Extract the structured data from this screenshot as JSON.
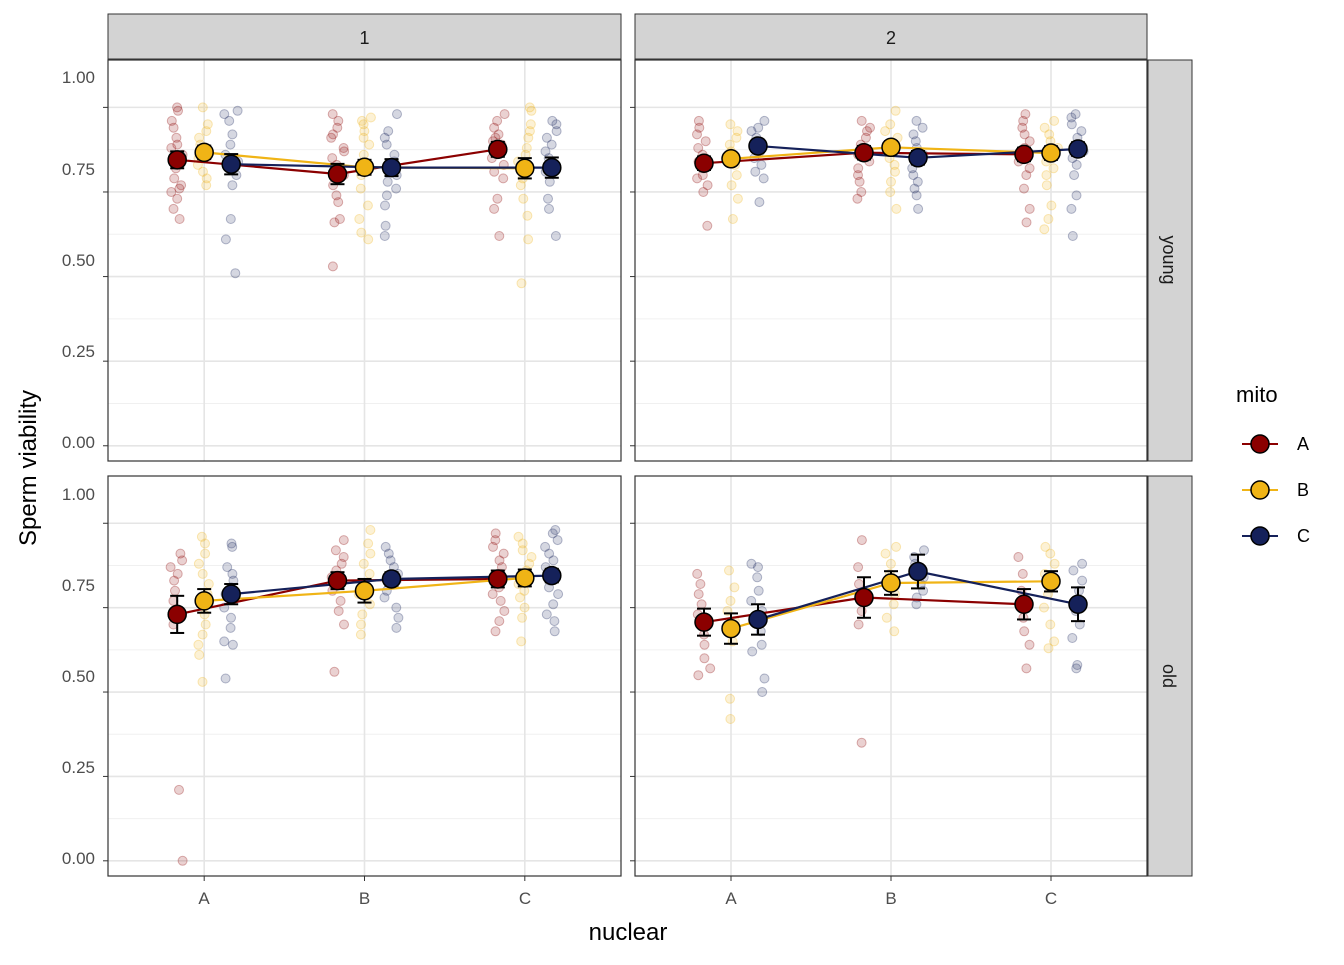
{
  "chart_data": {
    "type": "line",
    "y_label": "Sperm viability",
    "x_label": "nuclear",
    "x_categories": [
      "A",
      "B",
      "C"
    ],
    "y_ticks": [
      "0.00",
      "0.25",
      "0.50",
      "0.75",
      "1.00"
    ],
    "ylim": [
      -0.045,
      1.14
    ],
    "col_facets": [
      "1",
      "2"
    ],
    "row_facets": [
      "young",
      "old"
    ],
    "legend": {
      "title": "mito",
      "entries": [
        {
          "label": "A",
          "color": "#8B0000"
        },
        {
          "label": "B",
          "color": "#F0B416"
        },
        {
          "label": "C",
          "color": "#15215A"
        }
      ]
    },
    "panels": [
      {
        "col": "1",
        "row": "young",
        "means": {
          "A": [
            {
              "m": 0.845,
              "se": 0.025
            },
            {
              "m": 0.803,
              "se": 0.03
            },
            {
              "m": 0.876,
              "se": 0.022
            }
          ],
          "B": [
            {
              "m": 0.867,
              "se": 0.02
            },
            {
              "m": 0.823,
              "se": 0.022
            },
            {
              "m": 0.82,
              "se": 0.03
            }
          ],
          "C": [
            {
              "m": 0.832,
              "se": 0.03
            },
            {
              "m": 0.822,
              "se": 0.025
            },
            {
              "m": 0.822,
              "se": 0.03
            }
          ]
        },
        "raw": {
          "A": [
            [
              1.0,
              0.99,
              0.96,
              0.94,
              0.91,
              0.89,
              0.88,
              0.86,
              0.84,
              0.82,
              0.79,
              0.77,
              0.76,
              0.75,
              0.73,
              0.7,
              0.67
            ],
            [
              0.98,
              0.96,
              0.94,
              0.92,
              0.91,
              0.88,
              0.87,
              0.85,
              0.83,
              0.8,
              0.77,
              0.74,
              0.72,
              0.67,
              0.66,
              0.53
            ],
            [
              0.98,
              0.96,
              0.94,
              0.92,
              0.91,
              0.9,
              0.89,
              0.88,
              0.87,
              0.85,
              0.83,
              0.81,
              0.79,
              0.73,
              0.7,
              0.62
            ]
          ],
          "B": [
            [
              1.0,
              0.95,
              0.93,
              0.91,
              0.89,
              0.87,
              0.85,
              0.83,
              0.81,
              0.79,
              0.77
            ],
            [
              0.97,
              0.96,
              0.95,
              0.93,
              0.91,
              0.89,
              0.86,
              0.83,
              0.8,
              0.76,
              0.71,
              0.67,
              0.63,
              0.61
            ],
            [
              1.0,
              0.99,
              0.95,
              0.93,
              0.91,
              0.88,
              0.86,
              0.84,
              0.81,
              0.79,
              0.77,
              0.73,
              0.68,
              0.61,
              0.48
            ]
          ],
          "C": [
            [
              0.99,
              0.98,
              0.96,
              0.92,
              0.89,
              0.86,
              0.84,
              0.82,
              0.8,
              0.77,
              0.67,
              0.61,
              0.51
            ],
            [
              0.98,
              0.93,
              0.91,
              0.89,
              0.86,
              0.84,
              0.82,
              0.8,
              0.78,
              0.76,
              0.74,
              0.71,
              0.65,
              0.62
            ],
            [
              0.96,
              0.95,
              0.93,
              0.91,
              0.89,
              0.87,
              0.85,
              0.83,
              0.81,
              0.78,
              0.73,
              0.7,
              0.62
            ]
          ]
        }
      },
      {
        "col": "2",
        "row": "young",
        "means": {
          "A": [
            {
              "m": 0.835,
              "se": 0.02
            },
            {
              "m": 0.866,
              "se": 0.02
            },
            {
              "m": 0.861,
              "se": 0.02
            }
          ],
          "B": [
            {
              "m": 0.848,
              "se": 0.015
            },
            {
              "m": 0.882,
              "se": 0.018
            },
            {
              "m": 0.865,
              "se": 0.02
            }
          ],
          "C": [
            {
              "m": 0.886,
              "se": 0.018
            },
            {
              "m": 0.851,
              "se": 0.02
            },
            {
              "m": 0.877,
              "se": 0.02
            }
          ]
        },
        "raw": {
          "A": [
            [
              0.96,
              0.94,
              0.92,
              0.9,
              0.88,
              0.86,
              0.84,
              0.82,
              0.8,
              0.79,
              0.77,
              0.75,
              0.65
            ],
            [
              0.96,
              0.94,
              0.93,
              0.91,
              0.89,
              0.88,
              0.86,
              0.84,
              0.82,
              0.8,
              0.78,
              0.75,
              0.73
            ],
            [
              0.98,
              0.96,
              0.94,
              0.92,
              0.9,
              0.88,
              0.86,
              0.84,
              0.82,
              0.8,
              0.76,
              0.7,
              0.66
            ]
          ],
          "B": [
            [
              0.95,
              0.93,
              0.91,
              0.89,
              0.87,
              0.85,
              0.83,
              0.8,
              0.77,
              0.73,
              0.67
            ],
            [
              0.99,
              0.95,
              0.93,
              0.91,
              0.89,
              0.87,
              0.85,
              0.83,
              0.81,
              0.78,
              0.75,
              0.7
            ],
            [
              0.96,
              0.94,
              0.92,
              0.9,
              0.88,
              0.86,
              0.84,
              0.82,
              0.8,
              0.77,
              0.71,
              0.67,
              0.64
            ]
          ],
          "C": [
            [
              0.96,
              0.94,
              0.93,
              0.91,
              0.89,
              0.87,
              0.85,
              0.83,
              0.81,
              0.79,
              0.72
            ],
            [
              0.96,
              0.94,
              0.92,
              0.9,
              0.88,
              0.86,
              0.84,
              0.82,
              0.8,
              0.78,
              0.76,
              0.74,
              0.7
            ],
            [
              0.98,
              0.97,
              0.95,
              0.93,
              0.91,
              0.89,
              0.87,
              0.85,
              0.83,
              0.8,
              0.74,
              0.7,
              0.62
            ]
          ]
        }
      },
      {
        "col": "1",
        "row": "old",
        "means": {
          "A": [
            {
              "m": 0.73,
              "se": 0.055
            },
            {
              "m": 0.83,
              "se": 0.025
            },
            {
              "m": 0.835,
              "se": 0.025
            }
          ],
          "B": [
            {
              "m": 0.77,
              "se": 0.035
            },
            {
              "m": 0.8,
              "se": 0.035
            },
            {
              "m": 0.838,
              "se": 0.025
            }
          ],
          "C": [
            {
              "m": 0.79,
              "se": 0.03
            },
            {
              "m": 0.835,
              "se": 0.02
            },
            {
              "m": 0.845,
              "se": 0.02
            }
          ]
        },
        "raw": {
          "A": [
            [
              0.91,
              0.89,
              0.87,
              0.85,
              0.83,
              0.8,
              0.77,
              0.74,
              0.72,
              0.7,
              0.21,
              0.0
            ],
            [
              0.95,
              0.92,
              0.9,
              0.88,
              0.86,
              0.84,
              0.82,
              0.8,
              0.77,
              0.74,
              0.7,
              0.56
            ],
            [
              0.97,
              0.95,
              0.93,
              0.91,
              0.89,
              0.87,
              0.85,
              0.83,
              0.81,
              0.79,
              0.77,
              0.74,
              0.71,
              0.68
            ]
          ],
          "B": [
            [
              0.96,
              0.94,
              0.91,
              0.88,
              0.85,
              0.82,
              0.79,
              0.76,
              0.73,
              0.7,
              0.67,
              0.64,
              0.61,
              0.53
            ],
            [
              0.98,
              0.94,
              0.91,
              0.88,
              0.85,
              0.82,
              0.79,
              0.76,
              0.73,
              0.7,
              0.67
            ],
            [
              0.96,
              0.94,
              0.92,
              0.9,
              0.88,
              0.86,
              0.84,
              0.82,
              0.8,
              0.78,
              0.75,
              0.72,
              0.65
            ]
          ],
          "C": [
            [
              0.94,
              0.93,
              0.87,
              0.85,
              0.83,
              0.81,
              0.79,
              0.75,
              0.72,
              0.69,
              0.65,
              0.64,
              0.54
            ],
            [
              0.93,
              0.91,
              0.89,
              0.87,
              0.85,
              0.83,
              0.8,
              0.78,
              0.75,
              0.72,
              0.69
            ],
            [
              0.98,
              0.97,
              0.95,
              0.93,
              0.91,
              0.89,
              0.87,
              0.85,
              0.83,
              0.81,
              0.79,
              0.76,
              0.73,
              0.71,
              0.68
            ]
          ]
        }
      },
      {
        "col": "2",
        "row": "old",
        "means": {
          "A": [
            {
              "m": 0.707,
              "se": 0.04
            },
            {
              "m": 0.78,
              "se": 0.06
            },
            {
              "m": 0.76,
              "se": 0.045
            }
          ],
          "B": [
            {
              "m": 0.688,
              "se": 0.045
            },
            {
              "m": 0.823,
              "se": 0.035
            },
            {
              "m": 0.828,
              "se": 0.03
            }
          ],
          "C": [
            {
              "m": 0.715,
              "se": 0.045
            },
            {
              "m": 0.857,
              "se": 0.05
            },
            {
              "m": 0.76,
              "se": 0.05
            }
          ]
        },
        "raw": {
          "A": [
            [
              0.85,
              0.82,
              0.79,
              0.76,
              0.73,
              0.7,
              0.67,
              0.64,
              0.6,
              0.57,
              0.55
            ],
            [
              0.95,
              0.87,
              0.82,
              0.78,
              0.74,
              0.7,
              0.35
            ],
            [
              0.9,
              0.85,
              0.8,
              0.76,
              0.72,
              0.68,
              0.64,
              0.57
            ]
          ],
          "B": [
            [
              0.86,
              0.81,
              0.77,
              0.74,
              0.71,
              0.68,
              0.65,
              0.48,
              0.42
            ],
            [
              0.93,
              0.91,
              0.88,
              0.85,
              0.82,
              0.79,
              0.76,
              0.72,
              0.68
            ],
            [
              0.93,
              0.91,
              0.88,
              0.85,
              0.82,
              0.79,
              0.75,
              0.7,
              0.65,
              0.63
            ]
          ],
          "C": [
            [
              0.88,
              0.87,
              0.84,
              0.8,
              0.77,
              0.74,
              0.71,
              0.68,
              0.64,
              0.62,
              0.54,
              0.5
            ],
            [
              0.92,
              0.9,
              0.88,
              0.86,
              0.84,
              0.82,
              0.8,
              0.78,
              0.76
            ],
            [
              0.88,
              0.86,
              0.83,
              0.8,
              0.77,
              0.74,
              0.7,
              0.66,
              0.58,
              0.57
            ]
          ]
        }
      }
    ]
  }
}
